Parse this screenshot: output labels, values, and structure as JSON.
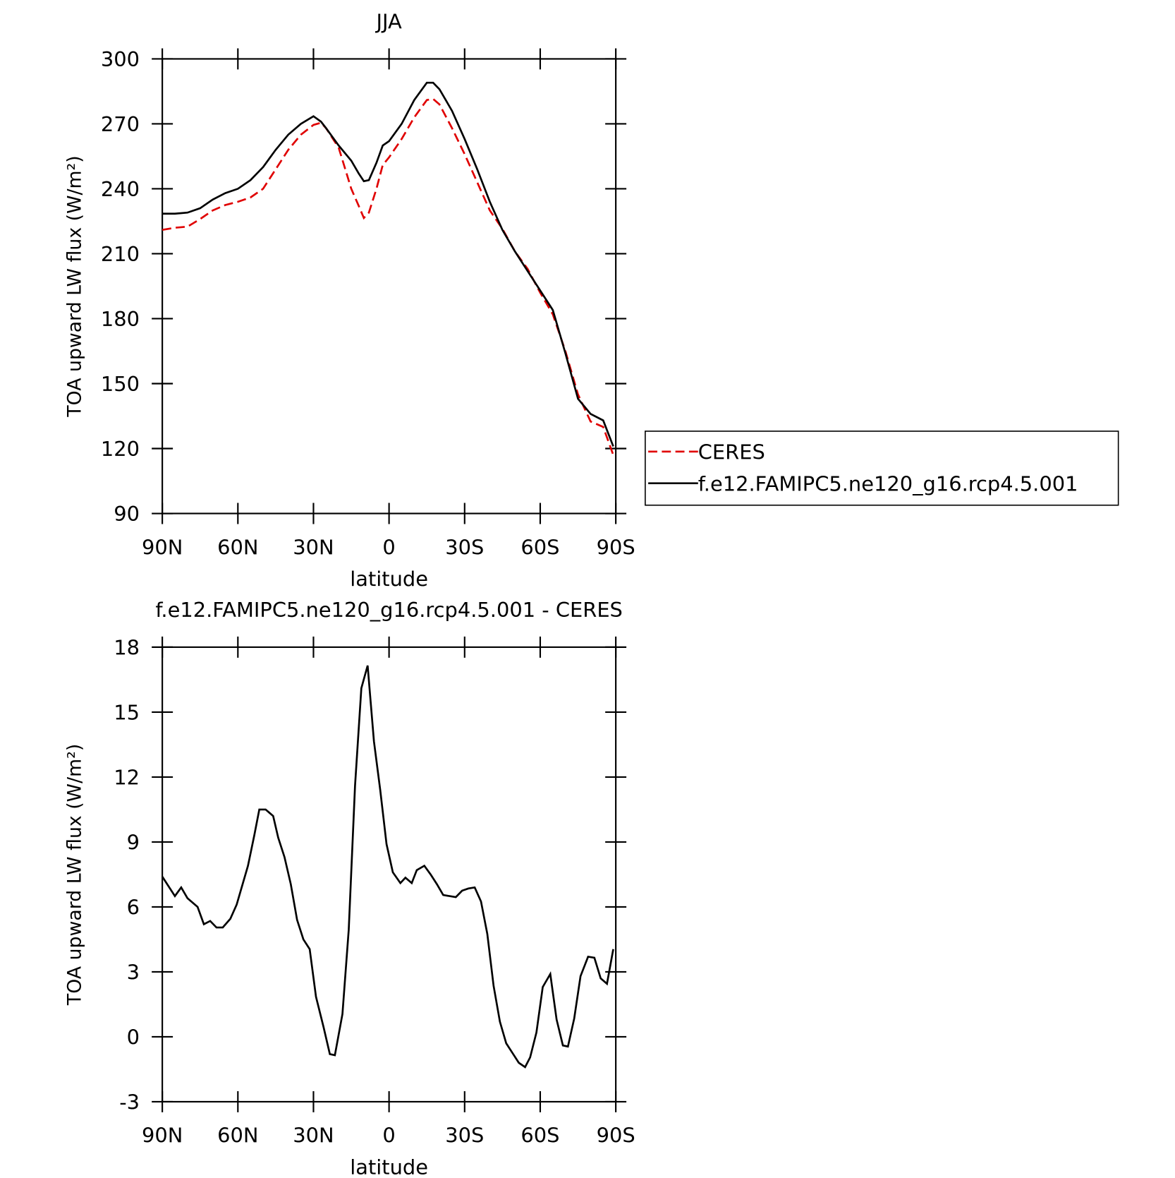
{
  "chart_data": [
    {
      "type": "line",
      "title": "JJA",
      "xlabel": "latitude",
      "ylabel": "TOA upward LW flux (W/m²)",
      "x": [
        90,
        85,
        80,
        75,
        70,
        65,
        60,
        55,
        50,
        45,
        40,
        35,
        30,
        27,
        25,
        20,
        15,
        12,
        10,
        8,
        5,
        2.5,
        0,
        -5,
        -10,
        -15,
        -17.5,
        -20,
        -25,
        -30,
        -35,
        -40,
        -45,
        -50,
        -55,
        -60,
        -65,
        -70,
        -75,
        -80,
        -85,
        -89
      ],
      "series": [
        {
          "name": "CERES",
          "color": "#e00000",
          "dashed": true,
          "values": [
            221,
            222,
            222.5,
            226,
            230,
            232.5,
            234,
            236,
            240,
            249,
            258,
            265,
            269.5,
            270.5,
            268,
            259,
            240,
            232,
            226.5,
            229,
            240,
            251,
            254.5,
            263,
            273,
            281,
            281.5,
            279,
            268,
            256,
            243,
            230,
            221.5,
            211,
            203,
            192,
            182,
            165,
            145,
            132.5,
            130,
            117
          ]
        },
        {
          "name": "f.e12.FAMIPC5.ne120_g16.rcp4.5.001",
          "color": "#000000",
          "dashed": false,
          "values": [
            228.5,
            228.5,
            229,
            231,
            235,
            238,
            240,
            244,
            250,
            258,
            265,
            270,
            273.5,
            271,
            268,
            260,
            253,
            247,
            243.5,
            244,
            252,
            260,
            262,
            270,
            281,
            289,
            289,
            286,
            276,
            263,
            249,
            234,
            221,
            211,
            202,
            193,
            184,
            164,
            143,
            136,
            133,
            121
          ]
        }
      ],
      "xlim": [
        90,
        -90
      ],
      "xticks": [
        {
          "value": 90,
          "label": "90N"
        },
        {
          "value": 60,
          "label": "60N"
        },
        {
          "value": 30,
          "label": "30N"
        },
        0,
        {
          "value": -30,
          "label": "30S"
        },
        {
          "value": -60,
          "label": "60S"
        },
        {
          "value": -90,
          "label": "90S"
        }
      ],
      "ylim": [
        90,
        300
      ],
      "yticks": [
        90,
        120,
        150,
        180,
        210,
        240,
        270,
        300
      ],
      "legend": "right"
    },
    {
      "type": "line",
      "title": "f.e12.FAMIPC5.ne120_g16.rcp4.5.001 - CERES",
      "xlabel": "latitude",
      "ylabel": "TOA upward LW flux (W/m²)",
      "x": [
        90,
        85,
        82.5,
        80,
        76,
        73.5,
        71,
        68.5,
        66,
        63,
        60.5,
        56,
        53.5,
        51.5,
        49,
        46,
        44,
        41.5,
        39,
        36.5,
        34,
        31.5,
        29,
        26,
        23.5,
        21.5,
        18.5,
        16,
        13.5,
        11,
        8.5,
        6,
        3.5,
        1,
        -1.5,
        -4.5,
        -6.5,
        -9,
        -11,
        -14,
        -16.5,
        -19,
        -21.5,
        -24,
        -26.5,
        -29,
        -31.5,
        -34,
        -36.5,
        -39,
        -41.5,
        -44,
        -46.5,
        -49,
        -51.5,
        -54,
        -56,
        -58.5,
        -61,
        -64,
        -66.5,
        -69,
        -71,
        -73.5,
        -76,
        -79,
        -81.5,
        -84,
        -86.5,
        -89
      ],
      "values": [
        7.4,
        6.5,
        6.9,
        6.4,
        6.0,
        5.2,
        5.35,
        5.05,
        5.05,
        5.45,
        6.1,
        7.9,
        9.3,
        10.5,
        10.5,
        10.2,
        9.2,
        8.3,
        7.05,
        5.4,
        4.5,
        4.05,
        1.85,
        0.45,
        -0.8,
        -0.85,
        1.05,
        4.95,
        11.6,
        16.1,
        17.15,
        13.65,
        11.4,
        8.9,
        7.6,
        7.1,
        7.35,
        7.1,
        7.7,
        7.9,
        7.5,
        7.05,
        6.55,
        6.5,
        6.45,
        6.75,
        6.85,
        6.9,
        6.25,
        4.75,
        2.35,
        0.7,
        -0.3,
        -0.75,
        -1.2,
        -1.4,
        -0.95,
        0.2,
        2.3,
        2.9,
        0.8,
        -0.4,
        -0.45,
        0.85,
        2.8,
        3.7,
        3.65,
        2.7,
        2.45,
        4.05
      ],
      "color": "#000000",
      "xlim": [
        90,
        -90
      ],
      "xticks": [
        {
          "value": 90,
          "label": "90N"
        },
        {
          "value": 60,
          "label": "60N"
        },
        {
          "value": 30,
          "label": "30N"
        },
        0,
        {
          "value": -30,
          "label": "30S"
        },
        {
          "value": -60,
          "label": "60S"
        },
        {
          "value": -90,
          "label": "90S"
        }
      ],
      "ylim": [
        -3,
        18
      ],
      "yticks": [
        -3,
        0,
        3,
        6,
        9,
        12,
        15,
        18
      ]
    }
  ]
}
